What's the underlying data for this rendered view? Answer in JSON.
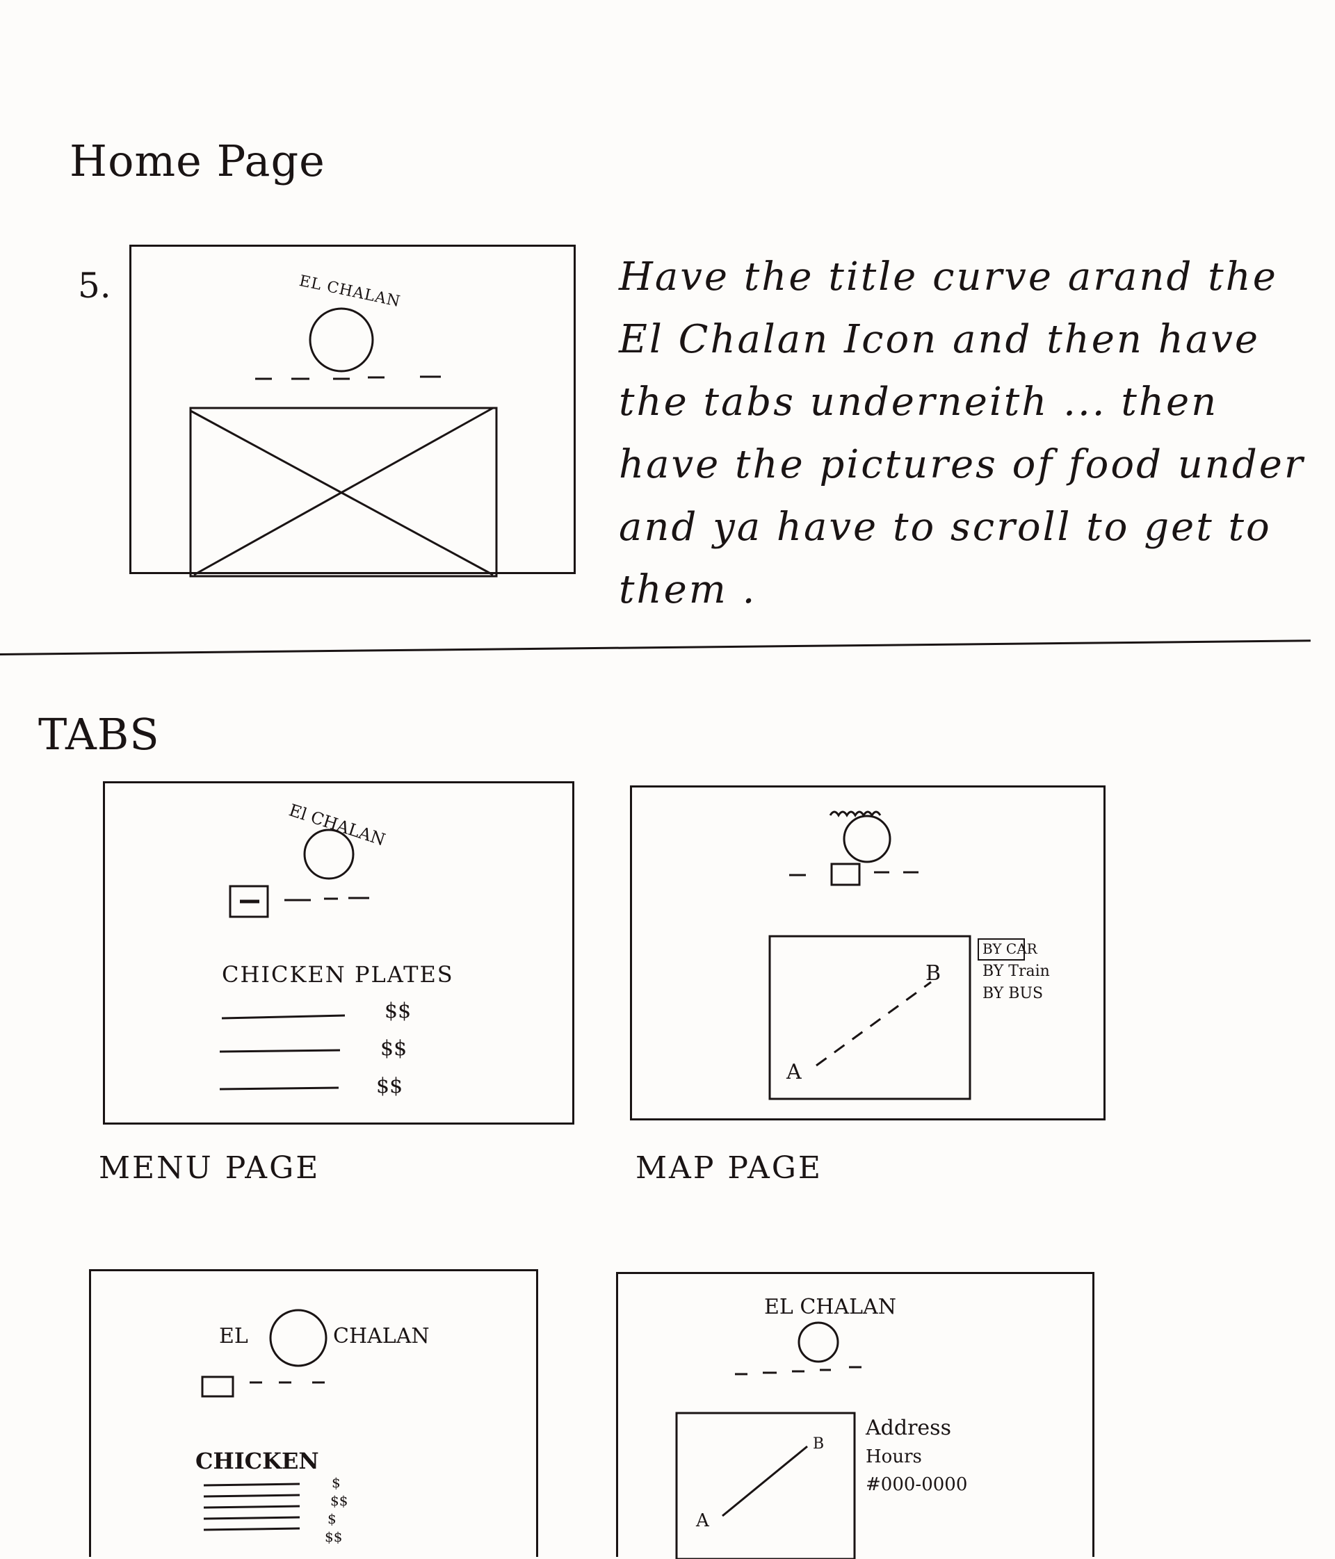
{
  "home": {
    "title": "Home Page",
    "number": "5.",
    "logo_title": "EL CHALAN",
    "note_lines": [
      "Have the title curve arand the",
      "El Chalan Icon and then have",
      "the tabs underneith ... then",
      "have the pictures of food under",
      "and ya have to scroll to get to",
      "them ."
    ]
  },
  "tabs": {
    "title": "TABS",
    "menu_page": {
      "logo_title": "El CHALAN",
      "heading": "CHICKEN PLATES",
      "prices": [
        "$$",
        "$$",
        "$$"
      ],
      "caption": "MENU PAGE"
    },
    "map_page": {
      "point_a": "A",
      "point_b": "B",
      "options": [
        "BY CAR",
        "BY Train",
        "BY BUS"
      ],
      "caption": "MAP PAGE"
    },
    "menu_page_2": {
      "logo_left": "EL",
      "logo_right": "CHALAN",
      "heading": "CHICKEN",
      "prices": [
        "$",
        "$$",
        "$",
        "$$"
      ]
    },
    "map_page_2": {
      "logo_title": "EL CHALAN",
      "point_a": "A",
      "point_b": "B",
      "info": [
        "Address",
        "Hours",
        "#000-0000"
      ]
    }
  }
}
